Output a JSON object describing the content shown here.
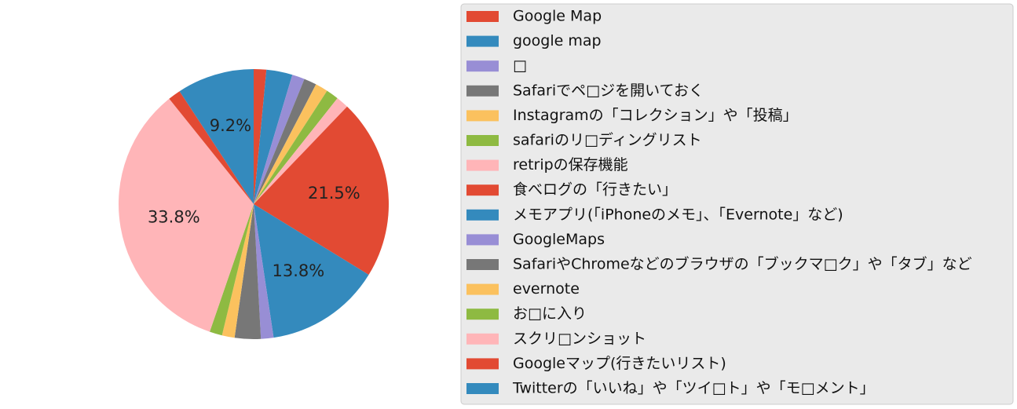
{
  "chart_data": {
    "type": "pie",
    "start_angle_deg": 90,
    "direction": "clockwise",
    "legend_placement": "right",
    "slices": [
      {
        "label": "Google Map",
        "value": 1.5,
        "color": "#E24A33"
      },
      {
        "label": "google map",
        "value": 3.1,
        "color": "#348ABD"
      },
      {
        "label": "□",
        "value": 1.5,
        "color": "#988ED5"
      },
      {
        "label": "Safariでペ□ジを開いておく",
        "value": 1.5,
        "color": "#777777"
      },
      {
        "label": "Instagramの「コレクション」や「投稿」",
        "value": 1.5,
        "color": "#FBC15E"
      },
      {
        "label": "safariのリ□ディングリスト",
        "value": 1.5,
        "color": "#8EBA42"
      },
      {
        "label": "retripの保存機能",
        "value": 1.5,
        "color": "#FFB5B8"
      },
      {
        "label": "食べログの「行きたい」",
        "value": 21.5,
        "color": "#E24A33"
      },
      {
        "label": "メモアプリ(「iPhoneのメモ」、「Evernote」など)",
        "value": 13.8,
        "color": "#348ABD"
      },
      {
        "label": "GoogleMaps",
        "value": 1.5,
        "color": "#988ED5"
      },
      {
        "label": "SafariやChromeなどのブラウザの「ブックマ□ク」や「タブ」など",
        "value": 3.1,
        "color": "#777777"
      },
      {
        "label": "evernote",
        "value": 1.5,
        "color": "#FBC15E"
      },
      {
        "label": "お□に入り",
        "value": 1.5,
        "color": "#8EBA42"
      },
      {
        "label": "スクリ□ンショット",
        "value": 33.8,
        "color": "#FFB5B8"
      },
      {
        "label": "Googleマップ(行きたいリスト)",
        "value": 1.5,
        "color": "#E24A33"
      },
      {
        "label": "Twitterの「いいね」や「ツイ□ト」や「モ□メント」",
        "value": 9.2,
        "color": "#348ABD"
      }
    ],
    "shown_percent_labels": [
      {
        "slice": 7,
        "text": "21.5%"
      },
      {
        "slice": 8,
        "text": "13.8%"
      },
      {
        "slice": 13,
        "text": "33.8%"
      },
      {
        "slice": 15,
        "text": "9.2%"
      }
    ]
  }
}
